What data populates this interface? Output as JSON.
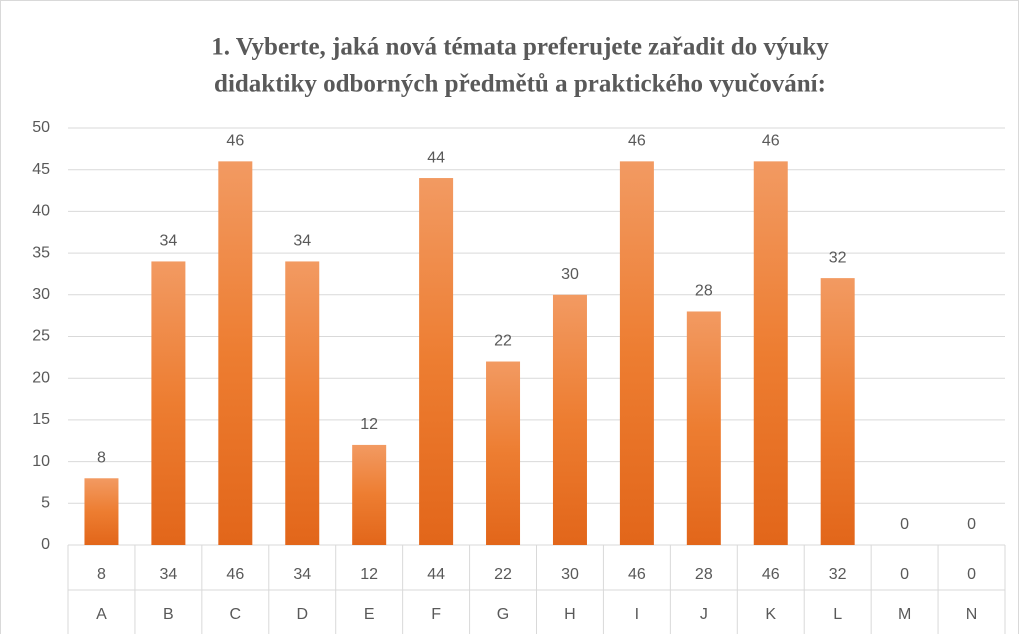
{
  "chart_data": {
    "type": "bar",
    "title": [
      "1. Vyberte, jaká nová témata preferujete zařadit do výuky",
      "didaktiky odborných předmětů a praktického vyučování:"
    ],
    "categories": [
      "A",
      "B",
      "C",
      "D",
      "E",
      "F",
      "G",
      "H",
      "I",
      "J",
      "K",
      "L",
      "M",
      "N"
    ],
    "values": [
      8,
      34,
      46,
      34,
      12,
      44,
      22,
      30,
      46,
      28,
      46,
      32,
      0,
      0
    ],
    "color": "#ed7d31",
    "ylim": [
      0,
      50
    ],
    "yticks": [
      0,
      5,
      10,
      15,
      20,
      25,
      30,
      35,
      40,
      45,
      50
    ],
    "grid": true,
    "data_table": true
  }
}
